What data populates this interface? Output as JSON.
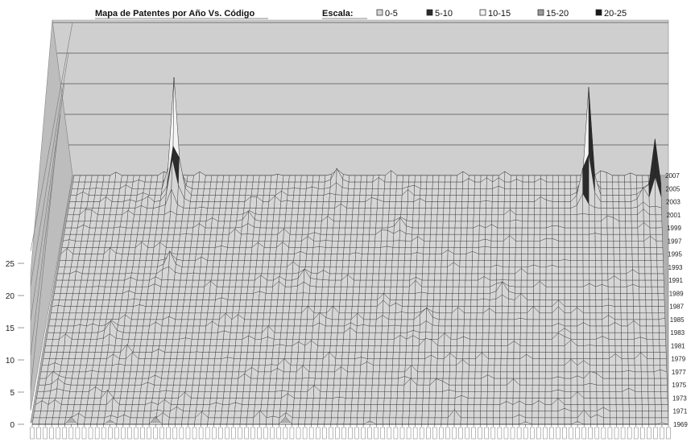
{
  "chart_data": {
    "type": "surface",
    "title": "Mapa de Patentes por Año Vs. Código",
    "legend": {
      "title": "Escala:",
      "placement": "top-right",
      "entries": [
        {
          "label": "0-5",
          "color": "#d6d6d6"
        },
        {
          "label": "5-10",
          "color": "#2b2b2b"
        },
        {
          "label": "10-15",
          "color": "#f4f4f4"
        },
        {
          "label": "15-20",
          "color": "#9a9a9a"
        },
        {
          "label": "20-25",
          "color": "#1a1a1a"
        }
      ]
    },
    "z_axis": {
      "ticks": [
        "0",
        "5",
        "10",
        "15",
        "20",
        "25"
      ],
      "range": [
        0,
        25
      ]
    },
    "y_axis": {
      "ticks": [
        "1969",
        "1971",
        "1973",
        "1975",
        "1977",
        "1979",
        "1981",
        "1983",
        "1985",
        "1987",
        "1989",
        "1991",
        "1993",
        "1995",
        "1997",
        "1999",
        "2001",
        "2003",
        "2005",
        "2007"
      ]
    },
    "x_axis": {
      "count": 99,
      "tick_labels_legible": false
    },
    "peaks": [
      {
        "x_index": 17,
        "year": "2005",
        "value": 24
      },
      {
        "x_index": 17,
        "year": "2003",
        "value": 9
      },
      {
        "x_index": 18,
        "year": "2004",
        "value": 8
      },
      {
        "x_index": 44,
        "year": "2006",
        "value": 3
      },
      {
        "x_index": 86,
        "year": "2004",
        "value": 23
      },
      {
        "x_index": 85,
        "year": "2003",
        "value": 7
      },
      {
        "x_index": 97,
        "year": "2004",
        "value": 12
      },
      {
        "x_index": 95,
        "year": "2003",
        "value": 3
      },
      {
        "x_index": 18,
        "year": "1993",
        "value": 3
      },
      {
        "x_index": 40,
        "year": "1991",
        "value": 2
      },
      {
        "x_index": 72,
        "year": "1989",
        "value": 2
      },
      {
        "x_index": 10,
        "year": "1983",
        "value": 2
      },
      {
        "x_index": 60,
        "year": "1985",
        "value": 2
      },
      {
        "x_index": 30,
        "year": "2000",
        "value": 2
      },
      {
        "x_index": 55,
        "year": "1999",
        "value": 2
      },
      {
        "x_index": 3,
        "year": "1975",
        "value": 1
      }
    ]
  }
}
